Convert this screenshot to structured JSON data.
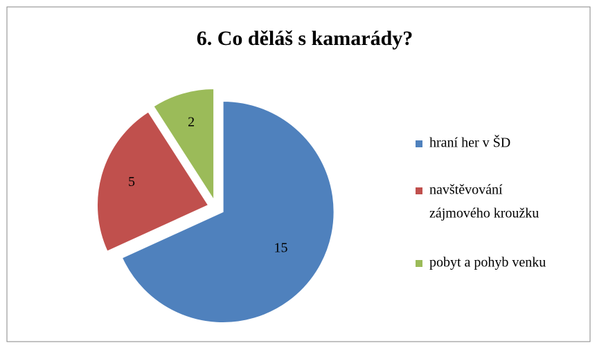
{
  "chart_data": {
    "type": "pie",
    "title": "6. Co děláš s kamarády?",
    "categories": [
      "hraní her v ŠD",
      "navštěvování zájmového kroužku",
      "pobyt a pohyb venku"
    ],
    "legend_lines": [
      [
        "hraní her v ŠD"
      ],
      [
        "navštěvování",
        "zájmového kroužku"
      ],
      [
        "pobyt a pohyb venku"
      ]
    ],
    "values": [
      15,
      5,
      2
    ],
    "colors": [
      "#4f81bd",
      "#c0504d",
      "#9bbb59"
    ],
    "legend": "right"
  }
}
